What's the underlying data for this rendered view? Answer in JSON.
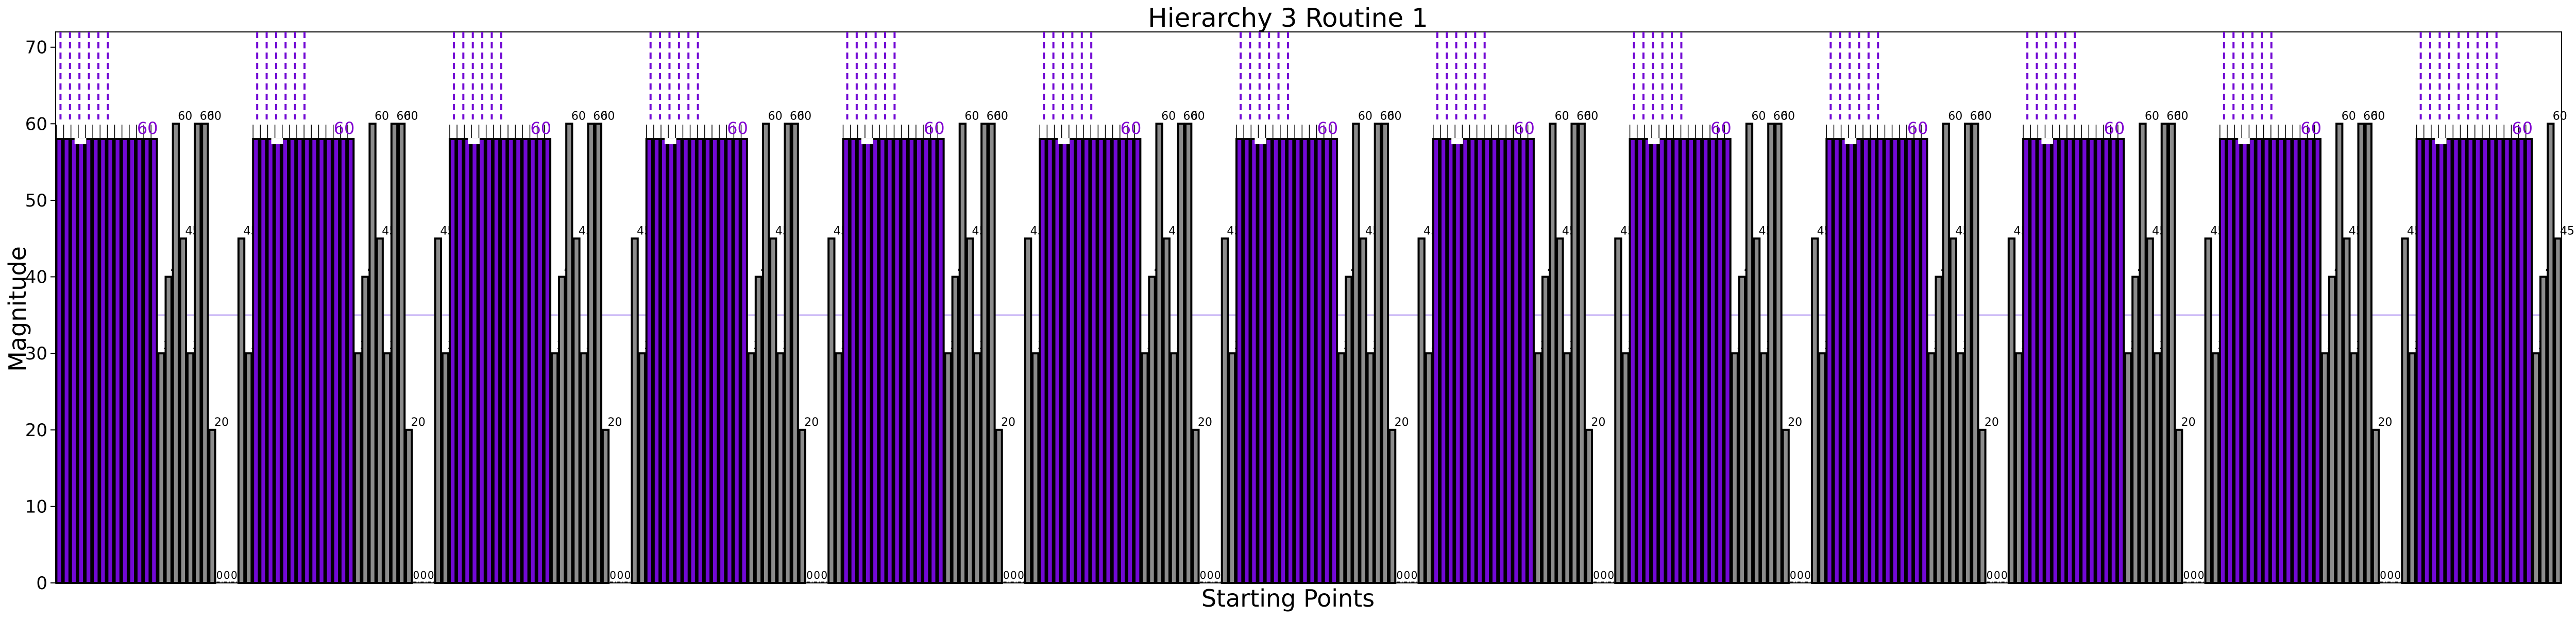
{
  "chart_data": {
    "type": "bar",
    "title": "Hierarchy 3 Routine 1",
    "xlabel": "Starting Points",
    "ylabel": "Magnitude",
    "ylim": [
      0,
      72
    ],
    "yticks": [
      0,
      10,
      20,
      30,
      40,
      50,
      60,
      70
    ],
    "reference_line": 35,
    "grid": false,
    "legend": "none",
    "colors": {
      "highlight_bar": "#7209d4",
      "regular_bar": "#8c8c8c",
      "bar_edge": "#000000",
      "highlight_label": "#8000d0",
      "reference_line": "#c8b4f5"
    },
    "base_pattern": [
      {
        "values": [
          58,
          58,
          58,
          58,
          58,
          58,
          58,
          58,
          58,
          58,
          58,
          58,
          58,
          58
        ],
        "highlight": true
      },
      {
        "values": [
          30,
          40,
          60,
          45,
          30,
          60,
          60,
          20,
          0,
          0,
          0,
          45,
          30
        ],
        "highlight": false
      }
    ],
    "repeats": 12,
    "final_pattern": [
      {
        "values": [
          58,
          58,
          58,
          58,
          58,
          58,
          58,
          58,
          58,
          58,
          58,
          58,
          58,
          58,
          58,
          58
        ],
        "highlight": true
      },
      {
        "values": [
          30,
          40,
          60,
          45
        ],
        "highlight": false
      }
    ],
    "group_label": "60"
  }
}
